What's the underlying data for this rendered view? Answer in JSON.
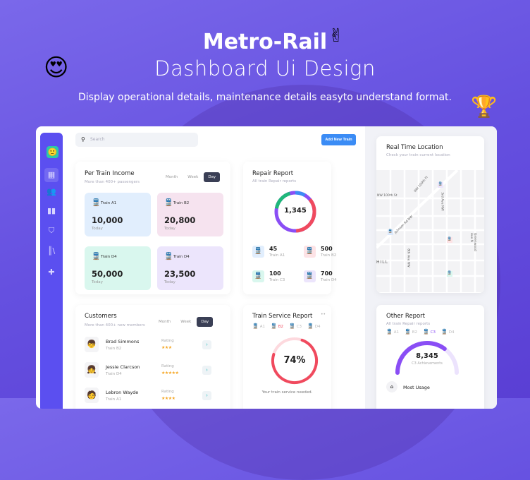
{
  "hero": {
    "title": "Metro-Rail",
    "subtitle": "Dashboard Ui Design",
    "tagline": "Display operational details, maintenance details easyto understand format."
  },
  "search": {
    "placeholder": "Search"
  },
  "toolbar": {
    "add_label": "Add New Train"
  },
  "tabs": [
    "Month",
    "Week",
    "Day"
  ],
  "income": {
    "title": "Per Train Income",
    "subtitle": "More than 400+ passengers",
    "tiles": [
      {
        "train": "Train A1",
        "value": "10,000",
        "period": "Today",
        "color": "#e1eefd"
      },
      {
        "train": "Train B2",
        "value": "20,800",
        "period": "Today",
        "color": "#f6e3ef"
      },
      {
        "train": "Train D4",
        "value": "50,000",
        "period": "Today",
        "color": "#d9f7ee"
      },
      {
        "train": "Train D4",
        "value": "23,500",
        "period": "Today",
        "color": "#ece5fc"
      }
    ]
  },
  "repair": {
    "title": "Repair Report",
    "subtitle": "All train Repair reports",
    "total": "1,345",
    "items": [
      {
        "value": "45",
        "train": "Train A1",
        "color": "#e1eefd"
      },
      {
        "value": "500",
        "train": "Train B2",
        "color": "#fde3e6"
      },
      {
        "value": "100",
        "train": "Train C3",
        "color": "#d9f7ee"
      },
      {
        "value": "700",
        "train": "Train D4",
        "color": "#ece5fc"
      }
    ]
  },
  "location": {
    "title": "Real Time Location",
    "subtitle": "Check your train current location",
    "streets": [
      "NW 100th St",
      "NW 100th Pl",
      "Johnson Rd NW",
      "3rd Ave NW",
      "8th Ave NW",
      "Greenwood Ave N",
      "HILL"
    ]
  },
  "customers": {
    "title": "Customers",
    "subtitle": "More than 400+ new members",
    "rating_label": "Rating",
    "list": [
      {
        "name": "Brad Simmons",
        "train": "Train B2",
        "stars": "★★★"
      },
      {
        "name": "Jessie Clarcson",
        "train": "Train D4",
        "stars": "★★★★★"
      },
      {
        "name": "Lebron Wayde",
        "train": "Train A1",
        "stars": "★★★★"
      }
    ]
  },
  "service": {
    "title": "Train Service Report",
    "trains": [
      "A1",
      "B2",
      "C3",
      "D4"
    ],
    "selected": "B2",
    "percent": 74,
    "percent_label": "74%",
    "note": "Your train service needed."
  },
  "other": {
    "title": "Other Report",
    "subtitle": "All train Repair reports",
    "trains": [
      "A1",
      "B2",
      "C3",
      "D4"
    ],
    "selected": "C3",
    "value": "8,345",
    "caption": "C3 Achievements",
    "progress": 0.7,
    "most_usage": "Most Usage"
  },
  "colors": {
    "accent": "#5b4ff0",
    "button": "#3b8cf5",
    "red": "#f04a5e",
    "purple": "#8a4ef5"
  }
}
